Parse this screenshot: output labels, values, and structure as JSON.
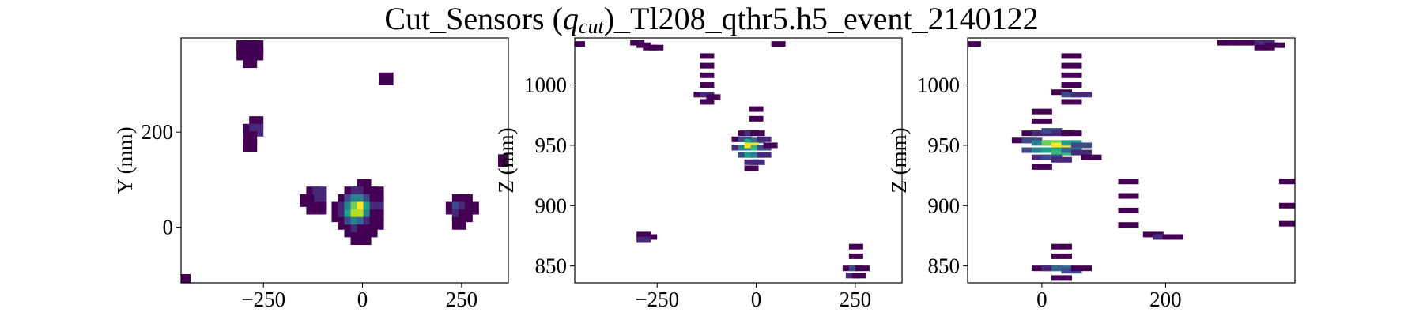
{
  "title_parts": [
    "Cut_Sensors (",
    "q",
    "cut",
    ")_Tl208_qthr5.h5_event_2140122"
  ],
  "chart_data": [
    {
      "type": "heatmap",
      "colormap": "viridis",
      "ylabel": "Y (mm)",
      "xlim": [
        -458,
        368
      ],
      "ylim": [
        -117,
        398
      ],
      "xticks": [
        {
          "value": -250,
          "label": "−250"
        },
        0,
        250
      ],
      "yticks": [
        0,
        200
      ],
      "x": [
        -300,
        -284,
        -268,
        -284,
        -300,
        -284,
        -268,
        60,
        -268,
        -284,
        -268,
        -284,
        -284,
        -124,
        -108,
        -124,
        -108,
        -124,
        -108,
        -140,
        4,
        -28,
        -12,
        4,
        20,
        36,
        -44,
        -28,
        -12,
        4,
        20,
        36,
        -60,
        -44,
        -28,
        -12,
        4,
        20,
        36,
        -60,
        -44,
        -28,
        -12,
        4,
        20,
        36,
        -44,
        -28,
        -12,
        4,
        20,
        36,
        -28,
        -12,
        4,
        20,
        -12,
        4,
        244,
        260,
        228,
        244,
        260,
        276,
        244,
        260,
        244,
        -452,
        360
      ],
      "y": [
        380,
        380,
        380,
        364,
        364,
        348,
        364,
        312,
        220,
        204,
        204,
        188,
        172,
        72,
        72,
        56,
        56,
        40,
        40,
        56,
        88,
        72,
        72,
        72,
        72,
        72,
        56,
        56,
        56,
        56,
        56,
        56,
        40,
        40,
        40,
        40,
        40,
        40,
        40,
        24,
        24,
        24,
        24,
        24,
        24,
        24,
        8,
        8,
        8,
        8,
        8,
        8,
        -8,
        -8,
        -8,
        -8,
        -24,
        -24,
        56,
        56,
        40,
        40,
        40,
        40,
        24,
        24,
        8,
        -112,
        140
      ],
      "values": [
        1,
        1,
        1,
        2,
        1,
        1,
        1,
        1,
        1,
        1,
        2,
        1,
        1,
        1,
        2,
        3,
        2,
        1,
        1,
        1,
        1,
        1,
        2,
        2,
        1,
        1,
        1,
        3,
        5,
        5,
        3,
        1,
        1,
        2,
        5,
        8,
        10,
        6,
        2,
        1,
        2,
        6,
        9,
        9,
        5,
        1,
        1,
        3,
        5,
        4,
        2,
        1,
        1,
        2,
        1,
        1,
        1,
        1,
        1,
        1,
        1,
        3,
        2,
        1,
        2,
        1,
        1,
        1,
        1
      ]
    },
    {
      "type": "heatmap",
      "colormap": "viridis",
      "ylabel": "Z (mm)",
      "xlim": [
        -458,
        368
      ],
      "ylim": [
        836,
        1039
      ],
      "xticks": [
        {
          "value": -250,
          "label": "−250"
        },
        0,
        250
      ],
      "yticks": [
        850,
        900,
        950,
        1000
      ],
      "x": [
        -300,
        -284,
        -268,
        -252,
        -450,
        56,
        -124,
        -124,
        -124,
        -124,
        -140,
        -124,
        -108,
        -124,
        0,
        0,
        -28,
        -12,
        4,
        -44,
        -28,
        -12,
        4,
        20,
        -44,
        -28,
        -12,
        4,
        20,
        36,
        -28,
        -12,
        4,
        20,
        -12,
        4,
        -12,
        -284,
        -268,
        -284,
        252,
        252,
        236,
        252,
        268,
        244,
        260
      ],
      "y": [
        1035,
        1033,
        1031,
        1031,
        1034,
        1034,
        1024,
        1016,
        1008,
        1000,
        992,
        992,
        990,
        986,
        980,
        972,
        960,
        960,
        960,
        955,
        955,
        953,
        954,
        955,
        948,
        948,
        950,
        948,
        948,
        950,
        942,
        942,
        942,
        942,
        936,
        936,
        931,
        876,
        874,
        872,
        866,
        858,
        848,
        848,
        848,
        842,
        842
      ],
      "values": [
        1,
        1,
        1,
        1,
        1,
        1,
        1,
        1,
        1,
        1,
        1,
        2,
        1,
        1,
        1,
        1,
        1,
        2,
        1,
        1,
        3,
        6,
        4,
        2,
        2,
        5,
        10,
        7,
        3,
        1,
        3,
        6,
        5,
        2,
        2,
        2,
        1,
        1,
        1,
        2,
        1,
        1,
        1,
        3,
        1,
        2,
        1
      ]
    },
    {
      "type": "heatmap",
      "colormap": "viridis",
      "ylabel": "Z (mm)",
      "xlim": [
        -120,
        409
      ],
      "ylim": [
        836,
        1039
      ],
      "xticks": [
        0,
        200
      ],
      "yticks": [
        850,
        900,
        950,
        1000
      ],
      "x": [
        330,
        360,
        376,
        360,
        300,
        -115,
        48,
        48,
        48,
        48,
        32,
        48,
        64,
        48,
        0,
        0,
        -16,
        0,
        16,
        32,
        48,
        -32,
        -16,
        0,
        16,
        32,
        48,
        64,
        -16,
        0,
        16,
        32,
        48,
        64,
        80,
        0,
        16,
        32,
        0,
        140,
        140,
        140,
        140,
        180,
        196,
        212,
        400,
        400,
        400,
        32,
        32,
        0,
        16,
        32,
        48,
        64,
        32
      ],
      "y": [
        1035,
        1035,
        1033,
        1031,
        1035,
        1034,
        1024,
        1016,
        1008,
        1000,
        994,
        992,
        992,
        986,
        978,
        970,
        960,
        960,
        962,
        960,
        960,
        954,
        954,
        952,
        952,
        950,
        952,
        950,
        946,
        946,
        946,
        944,
        946,
        944,
        940,
        940,
        940,
        938,
        932,
        920,
        908,
        896,
        884,
        876,
        874,
        874,
        920,
        900,
        885,
        866,
        858,
        848,
        848,
        848,
        846,
        848,
        840
      ],
      "values": [
        1,
        2,
        1,
        1,
        1,
        1,
        1,
        1,
        1,
        1,
        1,
        3,
        2,
        1,
        1,
        1,
        1,
        2,
        3,
        2,
        1,
        1,
        3,
        5,
        8,
        10,
        6,
        3,
        3,
        5,
        6,
        7,
        4,
        2,
        1,
        2,
        3,
        2,
        1,
        1,
        1,
        1,
        1,
        1,
        2,
        1,
        1,
        1,
        1,
        1,
        1,
        1,
        2,
        4,
        3,
        1,
        1
      ]
    }
  ]
}
